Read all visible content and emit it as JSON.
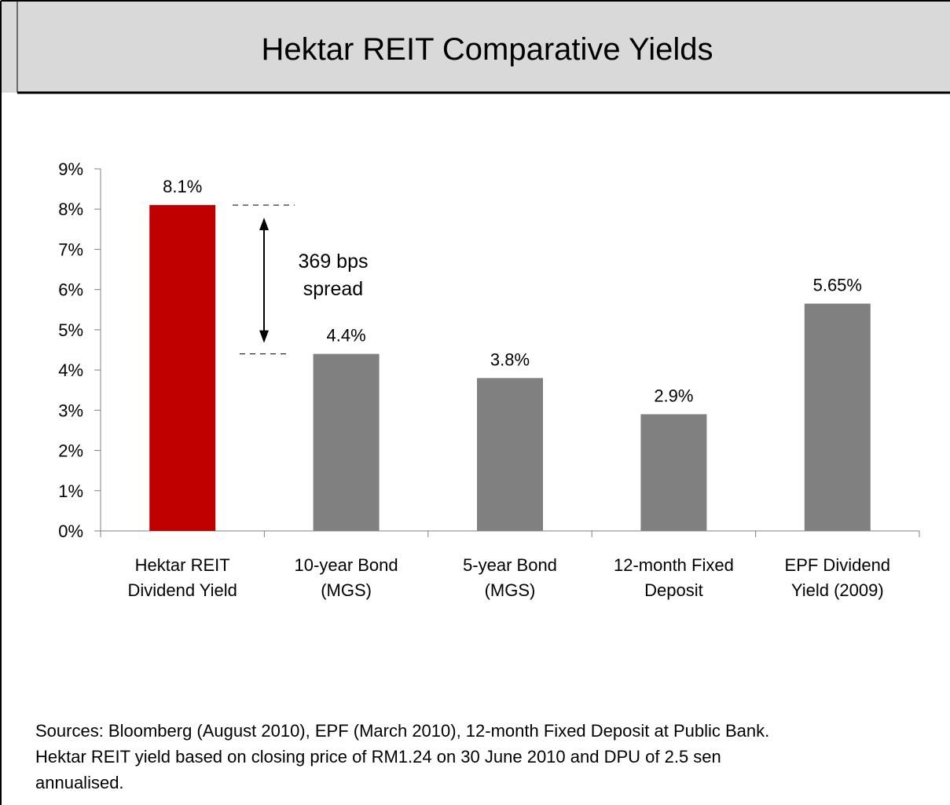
{
  "chart_data": {
    "type": "bar",
    "title": "Hektar REIT Comparative Yields",
    "categories": [
      "Hektar REIT\nDividend Yield",
      "10-year Bond\n(MGS)",
      "5-year Bond\n(MGS)",
      "12-month Fixed\nDeposit",
      "EPF Dividend\nYield (2009)"
    ],
    "values": [
      8.1,
      4.4,
      3.8,
      2.9,
      5.65
    ],
    "value_labels": [
      "8.1%",
      "4.4%",
      "3.8%",
      "2.9%",
      "5.65%"
    ],
    "colors": [
      "#c00000",
      "#808080",
      "#808080",
      "#808080",
      "#808080"
    ],
    "ylim": [
      0,
      9
    ],
    "yticks": [
      {
        "value": 0,
        "label": "0%"
      },
      {
        "value": 1,
        "label": "1%"
      },
      {
        "value": 2,
        "label": "2%"
      },
      {
        "value": 3,
        "label": "3%"
      },
      {
        "value": 4,
        "label": "4%"
      },
      {
        "value": 5,
        "label": "5%"
      },
      {
        "value": 6,
        "label": "6%"
      },
      {
        "value": 7,
        "label": "7%"
      },
      {
        "value": 8,
        "label": "8%"
      },
      {
        "value": 9,
        "label": "9%"
      }
    ],
    "annotation": "369 bps\nspread",
    "footnote": [
      "Sources: Bloomberg (August 2010), EPF (March 2010), 12-month Fixed Deposit at Public Bank.",
      "Hektar REIT yield based on closing price of RM1.24 on 30 June 2010 and DPU of 2.5 sen",
      "annualised."
    ]
  }
}
